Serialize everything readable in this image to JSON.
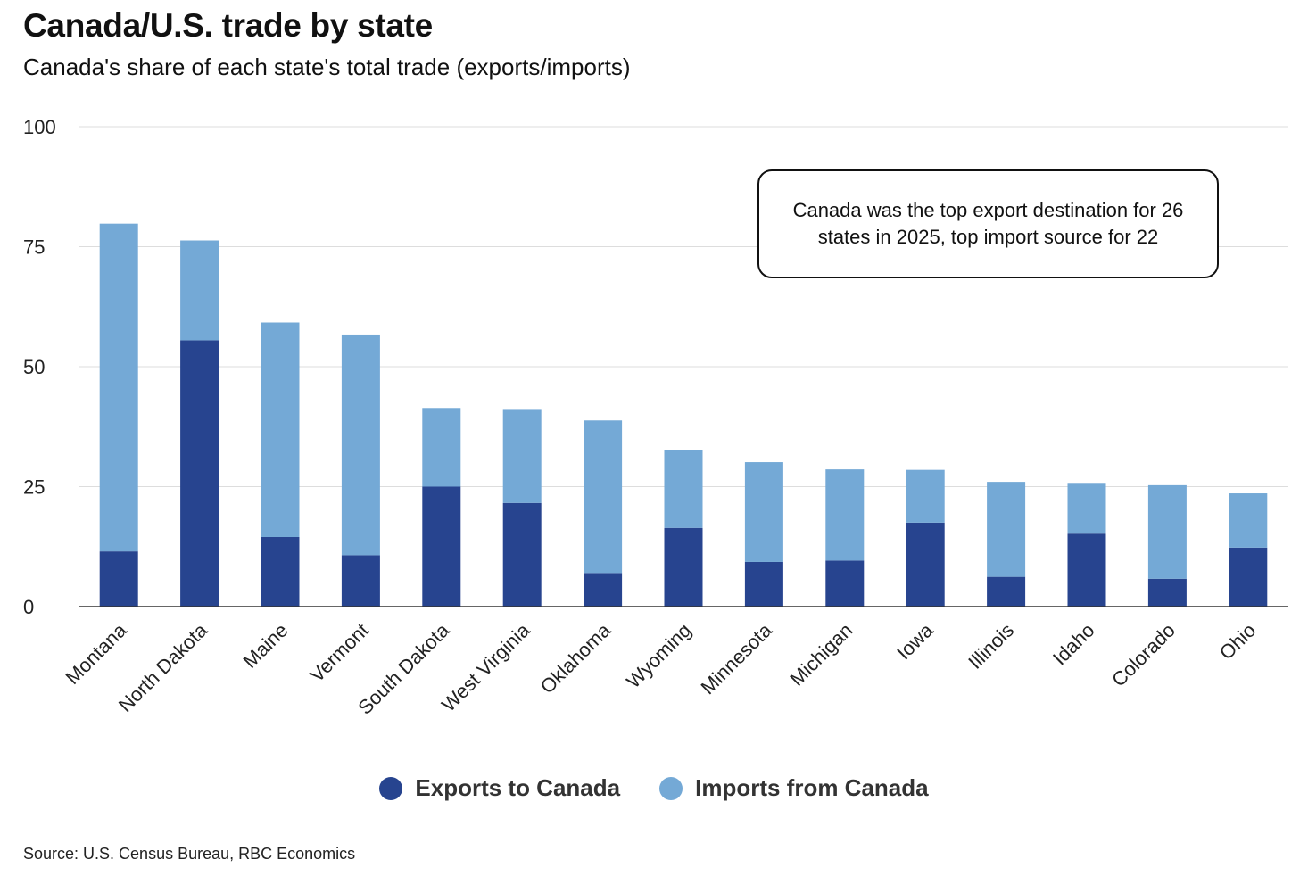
{
  "title": "Canada/U.S. trade by state",
  "subtitle": "Canada's share of each state's total trade (exports/imports)",
  "source": "Source: U.S. Census Bureau, RBC Economics",
  "callout": "Canada was the top export destination for 26 states in 2025, top import source for 22",
  "colors": {
    "exports": "#27448f",
    "imports": "#74a9d6",
    "grid": "#dddddd",
    "axis": "#333333"
  },
  "chart_data": {
    "type": "bar",
    "stacked": true,
    "categories": [
      "Montana",
      "North Dakota",
      "Maine",
      "Vermont",
      "South Dakota",
      "West Virginia",
      "Oklahoma",
      "Wyoming",
      "Minnesota",
      "Michigan",
      "Iowa",
      "Illinois",
      "Idaho",
      "Colorado",
      "Ohio"
    ],
    "series": [
      {
        "name": "Exports to Canada",
        "values": [
          11.5,
          55.5,
          14.5,
          10.7,
          25.0,
          21.6,
          7.0,
          16.4,
          9.3,
          9.6,
          17.5,
          6.2,
          15.2,
          5.8,
          12.3
        ]
      },
      {
        "name": "Imports from Canada",
        "values": [
          68.3,
          20.8,
          44.7,
          46.0,
          16.4,
          19.4,
          31.8,
          16.2,
          20.8,
          19.0,
          11.0,
          19.8,
          10.4,
          19.5,
          11.3
        ]
      }
    ],
    "ylim": [
      0,
      100
    ],
    "yticks": [
      0,
      25,
      50,
      75,
      100
    ],
    "grid": true,
    "legend_position": "bottom"
  }
}
